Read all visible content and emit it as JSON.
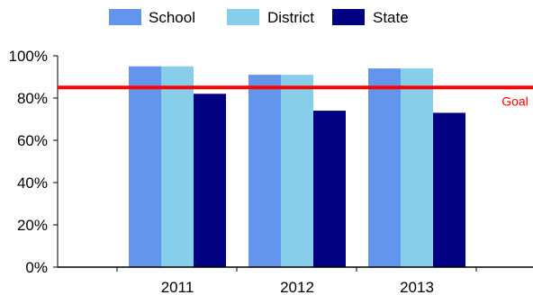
{
  "chart_data": {
    "type": "bar",
    "categories": [
      "2011",
      "2012",
      "2013"
    ],
    "series": [
      {
        "name": "School",
        "values": [
          95,
          91,
          94
        ],
        "color": "#6495ED"
      },
      {
        "name": "District",
        "values": [
          95,
          91,
          94
        ],
        "color": "#87CEEB"
      },
      {
        "name": "State",
        "values": [
          82,
          74,
          73
        ],
        "color": "#000080"
      }
    ],
    "ylim": [
      0,
      100
    ],
    "yticks": [
      "0%",
      "20%",
      "40%",
      "60%",
      "80%",
      "100%"
    ],
    "ytick_values": [
      0,
      20,
      40,
      60,
      80,
      100
    ],
    "goal": {
      "label": "Goal",
      "value": 85,
      "color": "#FF0000"
    },
    "legend_position": "top",
    "grid": false
  }
}
